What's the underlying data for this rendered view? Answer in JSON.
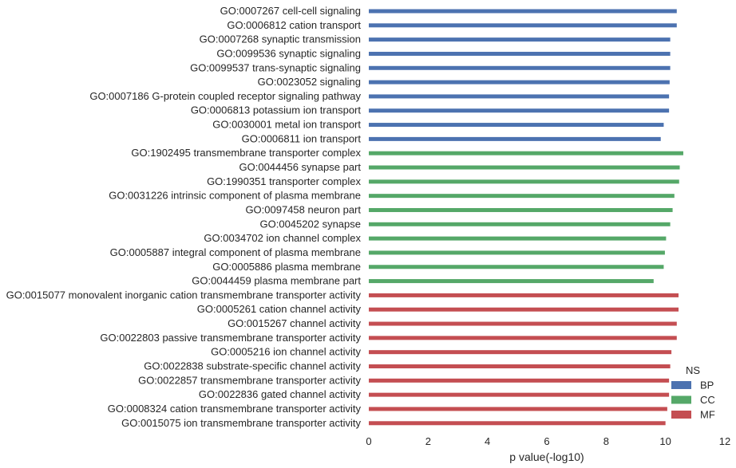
{
  "chart_data": {
    "type": "bar",
    "orientation": "horizontal",
    "title": "",
    "xlabel": "p value(-log10)",
    "ylabel": "",
    "xlim": [
      0,
      12
    ],
    "xticks": [
      0,
      2,
      4,
      6,
      8,
      10,
      12
    ],
    "grid": false,
    "legend": {
      "title": "NS",
      "placement": "bottom-right",
      "entries": [
        {
          "name": "BP",
          "color": "#4c72b0"
        },
        {
          "name": "CC",
          "color": "#55a868"
        },
        {
          "name": "MF",
          "color": "#c44e52"
        }
      ]
    },
    "categories": [
      "GO:0007267 cell-cell signaling",
      "GO:0006812 cation transport",
      "GO:0007268 synaptic transmission",
      "GO:0099536 synaptic signaling",
      "GO:0099537 trans-synaptic signaling",
      "GO:0023052 signaling",
      "GO:0007186 G-protein coupled receptor signaling pathway",
      "GO:0006813 potassium ion transport",
      "GO:0030001 metal ion transport",
      "GO:0006811 ion transport",
      "GO:1902495 transmembrane transporter complex",
      "GO:0044456 synapse part",
      "GO:1990351 transporter complex",
      "GO:0031226 intrinsic component of plasma membrane",
      "GO:0097458 neuron part",
      "GO:0045202 synapse",
      "GO:0034702 ion channel complex",
      "GO:0005887 integral component of plasma membrane",
      "GO:0005886 plasma membrane",
      "GO:0044459 plasma membrane part",
      "GO:0015077 monovalent inorganic cation transmembrane transporter activity",
      "GO:0005261 cation channel activity",
      "GO:0015267 channel activity",
      "GO:0022803 passive transmembrane transporter activity",
      "GO:0005216 ion channel activity",
      "GO:0022838 substrate-specific channel activity",
      "GO:0022857 transmembrane transporter activity",
      "GO:0022836 gated channel activity",
      "GO:0008324 cation transmembrane transporter activity",
      "GO:0015075 ion transmembrane transporter activity"
    ],
    "values": [
      10.38,
      10.38,
      10.16,
      10.16,
      10.16,
      10.14,
      10.12,
      10.12,
      9.94,
      9.84,
      10.6,
      10.48,
      10.46,
      10.3,
      10.24,
      10.16,
      10.02,
      9.98,
      9.94,
      9.6,
      10.44,
      10.44,
      10.38,
      10.38,
      10.2,
      10.16,
      10.12,
      10.12,
      10.06,
      10.0
    ],
    "groups": [
      "BP",
      "BP",
      "BP",
      "BP",
      "BP",
      "BP",
      "BP",
      "BP",
      "BP",
      "BP",
      "CC",
      "CC",
      "CC",
      "CC",
      "CC",
      "CC",
      "CC",
      "CC",
      "CC",
      "CC",
      "MF",
      "MF",
      "MF",
      "MF",
      "MF",
      "MF",
      "MF",
      "MF",
      "MF",
      "MF"
    ]
  }
}
